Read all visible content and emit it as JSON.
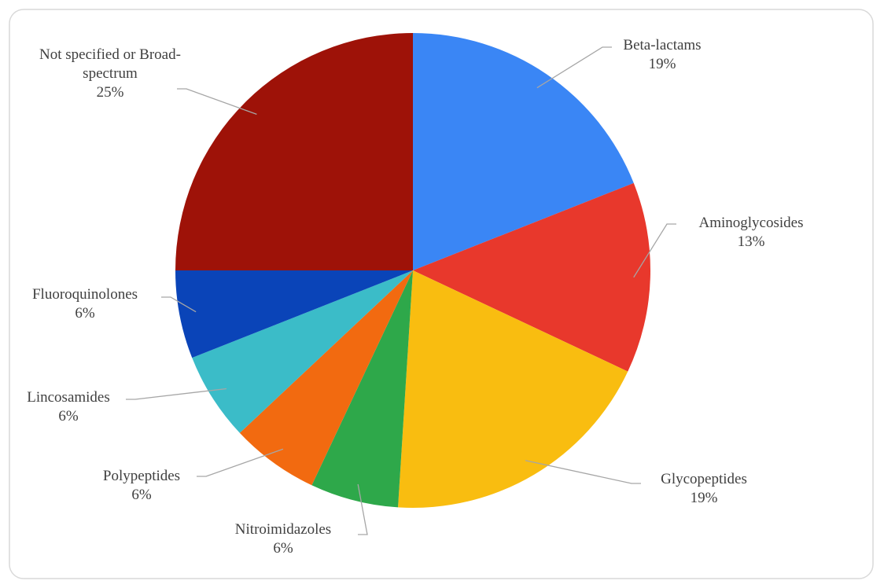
{
  "chart_data": {
    "type": "pie",
    "categories": [
      "Beta-lactams",
      "Aminoglycosides",
      "Glycopeptides",
      "Nitroimidazoles",
      "Polypeptides",
      "Lincosamides",
      "Fluoroquinolones",
      "Not specified or Broad-spectrum"
    ],
    "values": [
      19,
      13,
      19,
      6,
      6,
      6,
      6,
      25
    ],
    "value_labels": [
      "19%",
      "13%",
      "19%",
      "6%",
      "6%",
      "6%",
      "6%",
      "25%"
    ],
    "colors": [
      "#3a86f5",
      "#e8382c",
      "#f9bd10",
      "#2ea84a",
      "#f26a10",
      "#3bbcc8",
      "#0a44b8",
      "#9e1208"
    ]
  }
}
